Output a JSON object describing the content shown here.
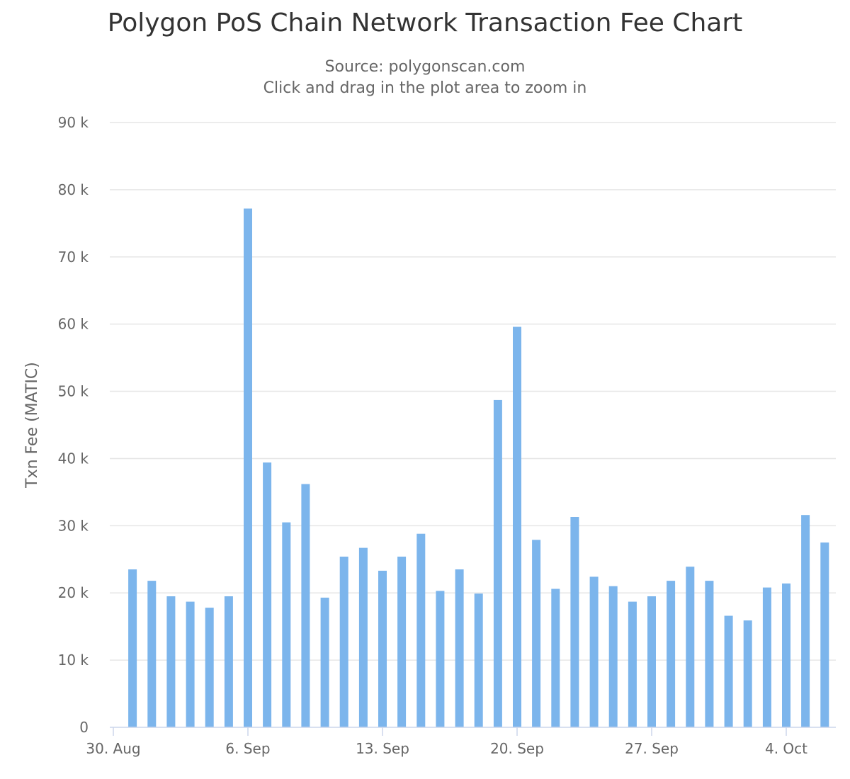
{
  "header": {
    "title": "Polygon PoS Chain Network Transaction Fee Chart",
    "subtitle_lines": [
      "Source: polygonscan.com",
      "Click and drag in the plot area to zoom in"
    ]
  },
  "chart_data": {
    "type": "bar",
    "title": "Polygon PoS Chain Network Transaction Fee Chart",
    "subtitle": "Source: polygonscan.com | Click and drag in the plot area to zoom in",
    "xlabel": "",
    "ylabel": "Txn Fee (MATIC)",
    "ylim": [
      0,
      90000
    ],
    "yticks": [
      0,
      10000,
      20000,
      30000,
      40000,
      50000,
      60000,
      70000,
      80000,
      90000
    ],
    "ytick_labels": [
      "0",
      "10 k",
      "20 k",
      "30 k",
      "40 k",
      "50 k",
      "60 k",
      "70 k",
      "80 k",
      "90 k"
    ],
    "xtick_labels": [
      "30. Aug",
      "6. Sep",
      "13. Sep",
      "20. Sep",
      "27. Sep",
      "4. Oct"
    ],
    "xtick_dates": [
      "2021-08-30",
      "2021-09-06",
      "2021-09-13",
      "2021-09-20",
      "2021-09-27",
      "2021-10-04"
    ],
    "bar_color": "#7cb5ec",
    "grid": true,
    "legend": "none",
    "categories": [
      "2021-08-31",
      "2021-09-01",
      "2021-09-02",
      "2021-09-03",
      "2021-09-04",
      "2021-09-05",
      "2021-09-06",
      "2021-09-07",
      "2021-09-08",
      "2021-09-09",
      "2021-09-10",
      "2021-09-11",
      "2021-09-12",
      "2021-09-13",
      "2021-09-14",
      "2021-09-15",
      "2021-09-16",
      "2021-09-17",
      "2021-09-18",
      "2021-09-19",
      "2021-09-20",
      "2021-09-21",
      "2021-09-22",
      "2021-09-23",
      "2021-09-24",
      "2021-09-25",
      "2021-09-26",
      "2021-09-27",
      "2021-09-28",
      "2021-09-29",
      "2021-09-30",
      "2021-10-01",
      "2021-10-02",
      "2021-10-03",
      "2021-10-04",
      "2021-10-05",
      "2021-10-06"
    ],
    "values": [
      23500,
      21800,
      19500,
      18700,
      17800,
      19500,
      77200,
      39400,
      30500,
      36200,
      19300,
      25400,
      26700,
      23300,
      25400,
      28800,
      20300,
      23500,
      19900,
      48700,
      59600,
      27900,
      20600,
      31300,
      22400,
      21000,
      18700,
      19500,
      21800,
      23900,
      21800,
      16600,
      15900,
      20800,
      21400,
      31600,
      27500
    ]
  }
}
